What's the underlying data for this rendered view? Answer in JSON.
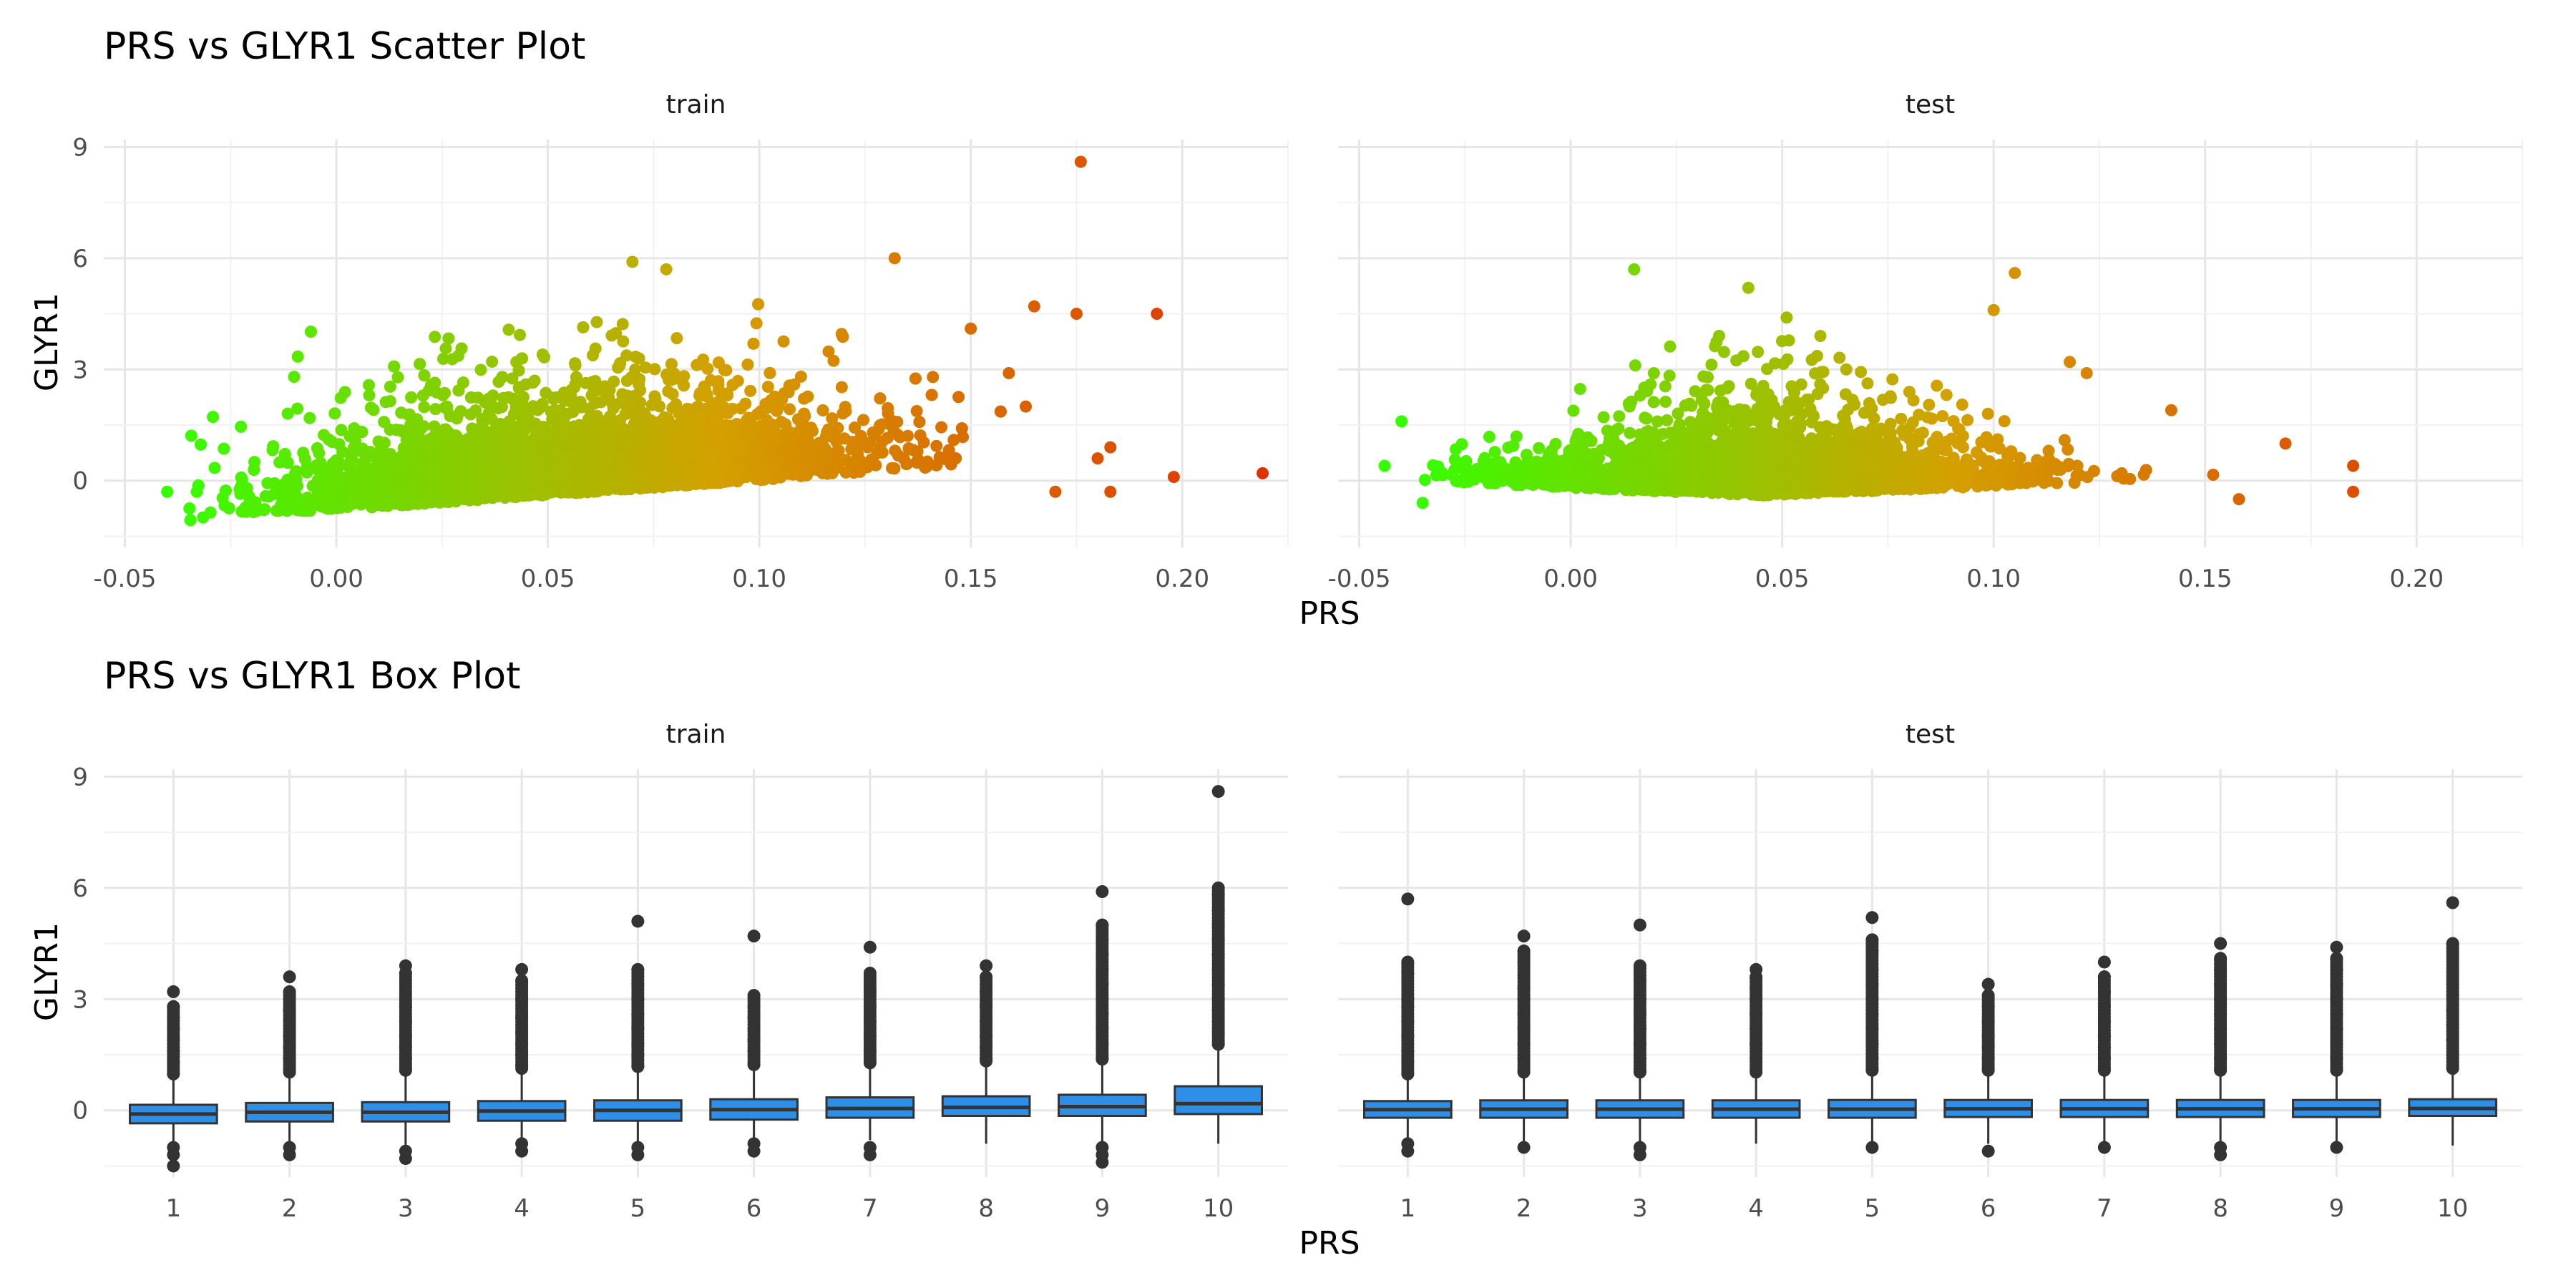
{
  "chart_data": [
    {
      "type": "scatter",
      "title": "PRS vs GLYR1 Scatter Plot",
      "xlabel": "PRS",
      "ylabel": "GLYR1",
      "facets": [
        "train",
        "test"
      ],
      "xlim": [
        -0.055,
        0.225
      ],
      "ylim": [
        -1.8,
        9.2
      ],
      "x_ticks": [
        "-0.05",
        "0.00",
        "0.05",
        "0.10",
        "0.15",
        "0.20"
      ],
      "y_ticks": [
        "0",
        "3",
        "6",
        "9"
      ],
      "grid": true,
      "color_gradient": [
        "#33ff00",
        "#d4a000",
        "#e03000"
      ],
      "color_by": "PRS",
      "approx_distribution": {
        "train": {
          "x_mean": 0.055,
          "x_sd": 0.032,
          "y_mean": 0.2,
          "y_sd": 0.9,
          "slope": 8,
          "n": 5000
        },
        "test": {
          "x_mean": 0.045,
          "x_sd": 0.03,
          "y_mean": 0.15,
          "y_sd": 0.9,
          "slope": 0,
          "n": 2600
        }
      },
      "outliers": {
        "train": [
          [
            -0.04,
            -0.3
          ],
          [
            -0.033,
            -0.3
          ],
          [
            -0.01,
            2.8
          ],
          [
            0.176,
            8.6
          ],
          [
            0.132,
            6.0
          ],
          [
            0.07,
            5.9
          ],
          [
            0.078,
            5.7
          ],
          [
            0.175,
            4.5
          ],
          [
            0.194,
            4.5
          ],
          [
            0.165,
            4.7
          ],
          [
            0.15,
            4.1
          ],
          [
            0.198,
            0.1
          ],
          [
            0.219,
            0.2
          ],
          [
            0.183,
            -0.3
          ],
          [
            0.183,
            0.9
          ],
          [
            0.18,
            0.6
          ],
          [
            0.17,
            -0.3
          ],
          [
            0.163,
            2.0
          ],
          [
            0.159,
            2.9
          ]
        ],
        "test": [
          [
            -0.044,
            0.4
          ],
          [
            -0.04,
            1.6
          ],
          [
            -0.035,
            -0.6
          ],
          [
            0.015,
            5.7
          ],
          [
            0.042,
            5.2
          ],
          [
            0.105,
            5.6
          ],
          [
            0.1,
            4.6
          ],
          [
            0.169,
            1.0
          ],
          [
            0.185,
            0.4
          ],
          [
            0.185,
            -0.3
          ],
          [
            0.158,
            -0.5
          ],
          [
            0.142,
            1.9
          ],
          [
            0.118,
            3.2
          ],
          [
            0.122,
            2.9
          ]
        ]
      }
    },
    {
      "type": "box",
      "title": "PRS vs GLYR1 Box Plot",
      "xlabel": "PRS",
      "ylabel": "GLYR1",
      "facets": [
        "train",
        "test"
      ],
      "categories": [
        "1",
        "2",
        "3",
        "4",
        "5",
        "6",
        "7",
        "8",
        "9",
        "10"
      ],
      "ylim": [
        -1.8,
        9.2
      ],
      "y_ticks": [
        "0",
        "3",
        "6",
        "9"
      ],
      "grid": true,
      "box_color": "#2e8fe8",
      "panels": {
        "train": [
          {
            "q1": -0.35,
            "median": -0.1,
            "q3": 0.15,
            "wlo": -0.9,
            "whi": 0.9,
            "out_hi": [
              1.0,
              1.3,
              1.6,
              1.9,
              2.2,
              2.5,
              2.8,
              3.2
            ],
            "out_lo": [
              -1.0,
              -1.2,
              -1.5
            ]
          },
          {
            "q1": -0.3,
            "median": -0.05,
            "q3": 0.2,
            "wlo": -0.9,
            "whi": 0.95,
            "out_hi": [
              1.1,
              1.4,
              1.7,
              2.0,
              2.4,
              2.7,
              3.2,
              3.6
            ],
            "out_lo": [
              -1.0,
              -1.2
            ]
          },
          {
            "q1": -0.3,
            "median": -0.05,
            "q3": 0.22,
            "wlo": -0.95,
            "whi": 1.0,
            "out_hi": [
              1.1,
              1.4,
              1.7,
              2.0,
              2.4,
              2.8,
              3.7,
              3.9
            ],
            "out_lo": [
              -1.1,
              -1.3
            ]
          },
          {
            "q1": -0.28,
            "median": -0.02,
            "q3": 0.25,
            "wlo": -0.85,
            "whi": 1.05,
            "out_hi": [
              1.2,
              1.5,
              1.8,
              2.1,
              2.5,
              3.0,
              3.5,
              3.8
            ],
            "out_lo": [
              -0.9,
              -1.1
            ]
          },
          {
            "q1": -0.28,
            "median": 0.0,
            "q3": 0.27,
            "wlo": -0.85,
            "whi": 1.1,
            "out_hi": [
              1.2,
              1.5,
              1.8,
              2.2,
              2.6,
              3.0,
              3.4,
              3.8,
              5.1
            ],
            "out_lo": [
              -1.0,
              -1.2
            ]
          },
          {
            "q1": -0.25,
            "median": 0.02,
            "q3": 0.3,
            "wlo": -0.85,
            "whi": 1.15,
            "out_hi": [
              1.25,
              1.6,
              1.9,
              2.2,
              2.5,
              2.8,
              3.1,
              4.7
            ],
            "out_lo": [
              -0.9,
              -1.1
            ]
          },
          {
            "q1": -0.2,
            "median": 0.05,
            "q3": 0.35,
            "wlo": -0.8,
            "whi": 1.2,
            "out_hi": [
              1.3,
              1.6,
              2.0,
              2.4,
              2.8,
              3.2,
              3.7,
              4.4
            ],
            "out_lo": [
              -1.0,
              -1.2
            ]
          },
          {
            "q1": -0.15,
            "median": 0.08,
            "q3": 0.38,
            "wlo": -0.9,
            "whi": 1.25,
            "out_hi": [
              1.4,
              1.7,
              2.0,
              2.4,
              2.8,
              3.2,
              3.6,
              3.9
            ]
          },
          {
            "q1": -0.15,
            "median": 0.1,
            "q3": 0.42,
            "wlo": -0.85,
            "whi": 1.3,
            "out_hi": [
              1.4,
              1.8,
              2.2,
              2.6,
              3.0,
              3.4,
              3.8,
              4.2,
              4.6,
              5.0,
              5.9
            ],
            "out_lo": [
              -1.0,
              -1.2,
              -1.4
            ]
          },
          {
            "q1": -0.1,
            "median": 0.18,
            "q3": 0.65,
            "wlo": -0.9,
            "whi": 1.7,
            "out_hi": [
              1.8,
              2.1,
              2.4,
              2.7,
              3.0,
              3.4,
              3.8,
              4.2,
              4.6,
              5.0,
              5.4,
              5.8,
              6.0,
              8.6
            ]
          }
        ],
        "test": [
          {
            "q1": -0.2,
            "median": 0.02,
            "q3": 0.25,
            "wlo": -0.85,
            "whi": 0.9,
            "out_hi": [
              1.0,
              1.3,
              1.6,
              2.0,
              2.4,
              2.8,
              3.0,
              3.7,
              4.0,
              5.7
            ],
            "out_lo": [
              -0.9,
              -1.1
            ]
          },
          {
            "q1": -0.2,
            "median": 0.03,
            "q3": 0.27,
            "wlo": -0.9,
            "whi": 0.95,
            "out_hi": [
              1.05,
              1.4,
              1.8,
              2.2,
              2.6,
              3.0,
              3.3,
              4.0,
              4.3,
              4.7
            ],
            "out_lo": [
              -1.0
            ]
          },
          {
            "q1": -0.2,
            "median": 0.03,
            "q3": 0.27,
            "wlo": -0.9,
            "whi": 0.95,
            "out_hi": [
              1.05,
              1.4,
              1.8,
              2.2,
              2.6,
              3.0,
              3.5,
              3.9,
              5.0
            ],
            "out_lo": [
              -1.0,
              -1.2
            ]
          },
          {
            "q1": -0.2,
            "median": 0.03,
            "q3": 0.27,
            "wlo": -0.9,
            "whi": 0.95,
            "out_hi": [
              1.05,
              1.4,
              1.8,
              2.2,
              2.6,
              3.0,
              3.3,
              3.6,
              3.8
            ]
          },
          {
            "q1": -0.2,
            "median": 0.03,
            "q3": 0.28,
            "wlo": -0.9,
            "whi": 1.0,
            "out_hi": [
              1.1,
              1.4,
              1.8,
              2.2,
              2.6,
              3.0,
              3.4,
              3.8,
              4.3,
              4.6,
              5.2
            ],
            "out_lo": [
              -1.0
            ]
          },
          {
            "q1": -0.18,
            "median": 0.04,
            "q3": 0.28,
            "wlo": -0.9,
            "whi": 1.0,
            "out_hi": [
              1.1,
              1.4,
              1.7,
              2.0,
              2.4,
              2.8,
              3.1,
              3.4
            ],
            "out_lo": [
              -1.1
            ]
          },
          {
            "q1": -0.18,
            "median": 0.04,
            "q3": 0.28,
            "wlo": -0.9,
            "whi": 1.0,
            "out_hi": [
              1.1,
              1.4,
              1.7,
              2.0,
              2.4,
              2.8,
              3.2,
              3.6,
              4.0
            ],
            "out_lo": [
              -1.0
            ]
          },
          {
            "q1": -0.18,
            "median": 0.04,
            "q3": 0.28,
            "wlo": -0.9,
            "whi": 1.0,
            "out_hi": [
              1.1,
              1.4,
              1.8,
              2.2,
              2.6,
              3.0,
              3.4,
              3.8,
              4.1,
              4.5
            ],
            "out_lo": [
              -1.0,
              -1.2
            ]
          },
          {
            "q1": -0.18,
            "median": 0.04,
            "q3": 0.28,
            "wlo": -0.9,
            "whi": 1.0,
            "out_hi": [
              1.1,
              1.4,
              1.8,
              2.2,
              2.6,
              3.0,
              3.4,
              3.8,
              4.1,
              4.4
            ],
            "out_lo": [
              -1.0
            ]
          },
          {
            "q1": -0.15,
            "median": 0.05,
            "q3": 0.3,
            "wlo": -0.95,
            "whi": 1.05,
            "out_hi": [
              1.15,
              1.5,
              1.9,
              2.3,
              2.7,
              3.1,
              3.4,
              4.5,
              5.6
            ]
          }
        ]
      }
    }
  ]
}
